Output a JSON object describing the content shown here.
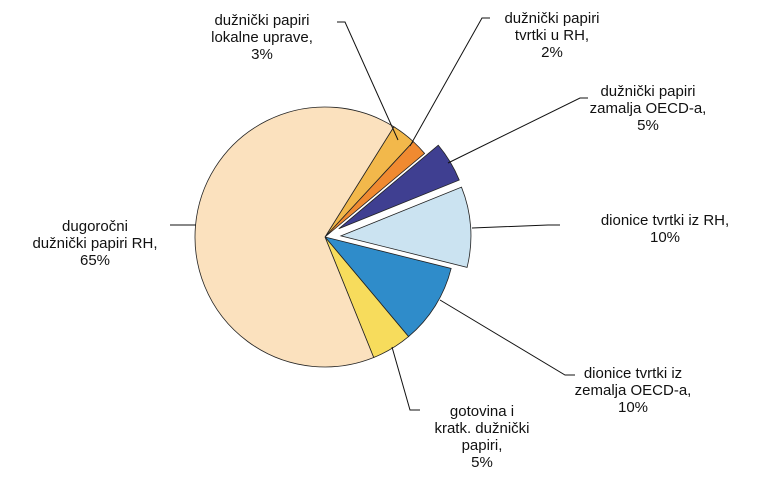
{
  "chart_data": {
    "type": "pie",
    "categories": [
      "dužnički papiri lokalne uprave,",
      "dužnički papiri tvrtki u RH,",
      "dužnički papiri zamalja OECD-a,",
      "dionice tvrtki iz RH,",
      "dionice tvrtki iz zemalja OECD-a,",
      "gotovina i kratk. dužnički papiri,",
      "dugoročni dužnički papiri RH,"
    ],
    "values": [
      3,
      2,
      5,
      10,
      10,
      5,
      65
    ],
    "value_labels": [
      "3%",
      "2%",
      "5%",
      "10%",
      "10%",
      "5%",
      "65%"
    ],
    "colors": [
      "#f2b84b",
      "#f08a30",
      "#3f3f91",
      "#cbe3f1",
      "#2f8cca",
      "#f7dc5c",
      "#fbe1be"
    ],
    "exploded": [
      false,
      false,
      true,
      true,
      false,
      false,
      false
    ]
  }
}
